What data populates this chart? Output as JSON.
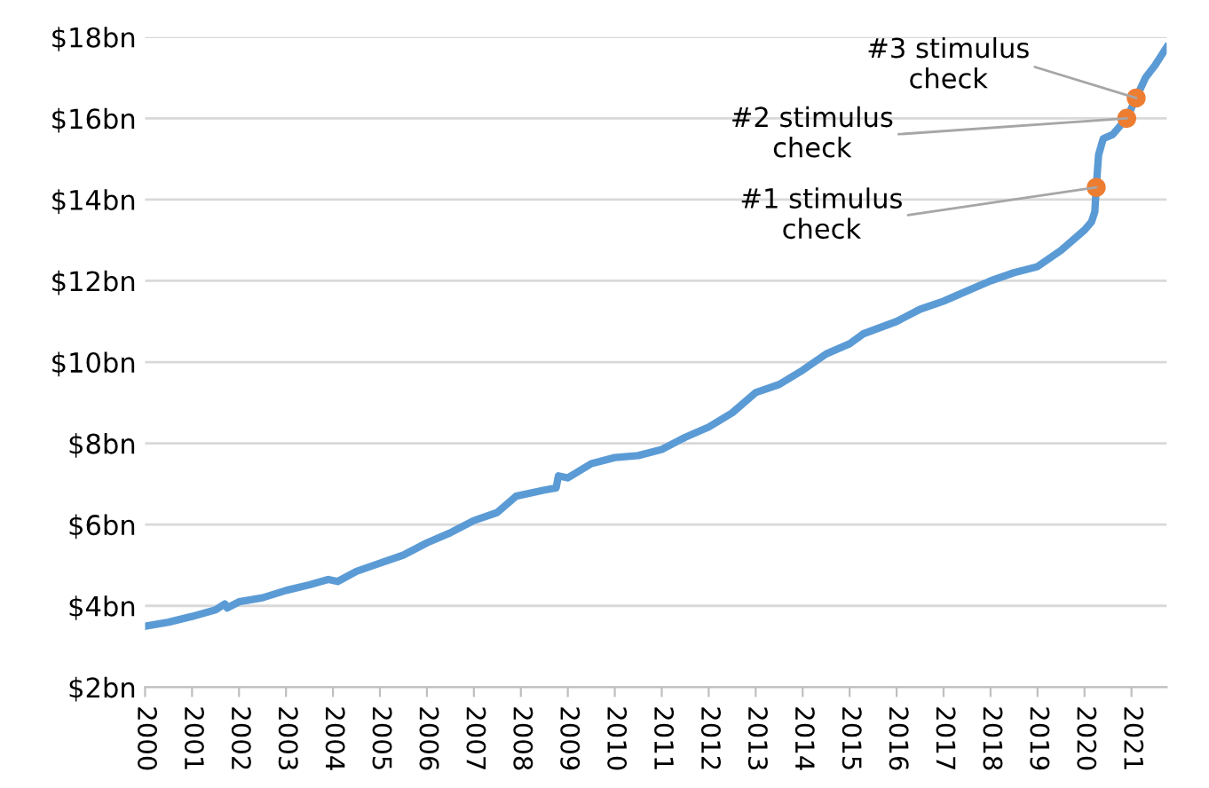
{
  "chart_data": {
    "type": "line",
    "x": [
      2000,
      2000.5,
      2001,
      2001.5,
      2001.7,
      2001.75,
      2002,
      2002.5,
      2003,
      2003.5,
      2003.9,
      2004.1,
      2004.5,
      2005,
      2005.5,
      2006,
      2006.5,
      2007,
      2007.5,
      2007.9,
      2008.5,
      2008.75,
      2008.8,
      2009,
      2009.5,
      2010,
      2010.5,
      2011,
      2011.5,
      2012,
      2012.5,
      2013,
      2013.5,
      2014,
      2014.5,
      2015,
      2015.3,
      2016,
      2016.5,
      2017,
      2017.5,
      2018,
      2018.5,
      2019,
      2019.5,
      2020,
      2020.15,
      2020.22,
      2020.25,
      2020.3,
      2020.4,
      2020.6,
      2020.9,
      2021.1,
      2021.3,
      2021.5,
      2021.75
    ],
    "series": [
      {
        "color": "#5b9bd5",
        "values": [
          3.5,
          3.6,
          3.74,
          3.9,
          4.05,
          3.95,
          4.1,
          4.2,
          4.38,
          4.52,
          4.65,
          4.6,
          4.85,
          5.05,
          5.25,
          5.55,
          5.8,
          6.1,
          6.3,
          6.7,
          6.85,
          6.9,
          7.2,
          7.15,
          7.5,
          7.65,
          7.7,
          7.85,
          8.15,
          8.4,
          8.75,
          9.25,
          9.45,
          9.8,
          10.2,
          10.45,
          10.7,
          11.0,
          11.3,
          11.5,
          11.75,
          12.0,
          12.2,
          12.35,
          12.75,
          13.25,
          13.45,
          13.7,
          14.3,
          15.1,
          15.5,
          15.6,
          16.0,
          16.5,
          17.0,
          17.3,
          17.75
        ]
      },
      {
        "type": "scatter",
        "color": "#ed7d31",
        "marker": "circle",
        "x": [
          2020.25,
          2020.9,
          2021.1
        ],
        "values": [
          14.3,
          16.0,
          16.5
        ]
      }
    ],
    "xlim": [
      2000,
      2021.75
    ],
    "xticks": [
      2000,
      2001,
      2002,
      2003,
      2004,
      2005,
      2006,
      2007,
      2008,
      2009,
      2010,
      2011,
      2012,
      2013,
      2014,
      2015,
      2016,
      2017,
      2018,
      2019,
      2020,
      2021
    ],
    "ylim": [
      2,
      18
    ],
    "yticks": [
      {
        "value": 2,
        "label": "$2bn"
      },
      {
        "value": 4,
        "label": "$4bn"
      },
      {
        "value": 6,
        "label": "$6bn"
      },
      {
        "value": 8,
        "label": "$8bn"
      },
      {
        "value": 10,
        "label": "$10bn"
      },
      {
        "value": 12,
        "label": "$12bn"
      },
      {
        "value": 14,
        "label": "$14bn"
      },
      {
        "value": 16,
        "label": "$16bn"
      },
      {
        "value": 18,
        "label": "$18bn"
      }
    ],
    "grid": "y",
    "annotations": [
      {
        "text": "#1 stimulus\ncheck",
        "x": 2020.25,
        "y": 14.3
      },
      {
        "text": "#2 stimulus\ncheck",
        "x": 2020.9,
        "y": 16.0
      },
      {
        "text": "#3 stimulus\ncheck",
        "x": 2021.1,
        "y": 16.5
      }
    ]
  }
}
